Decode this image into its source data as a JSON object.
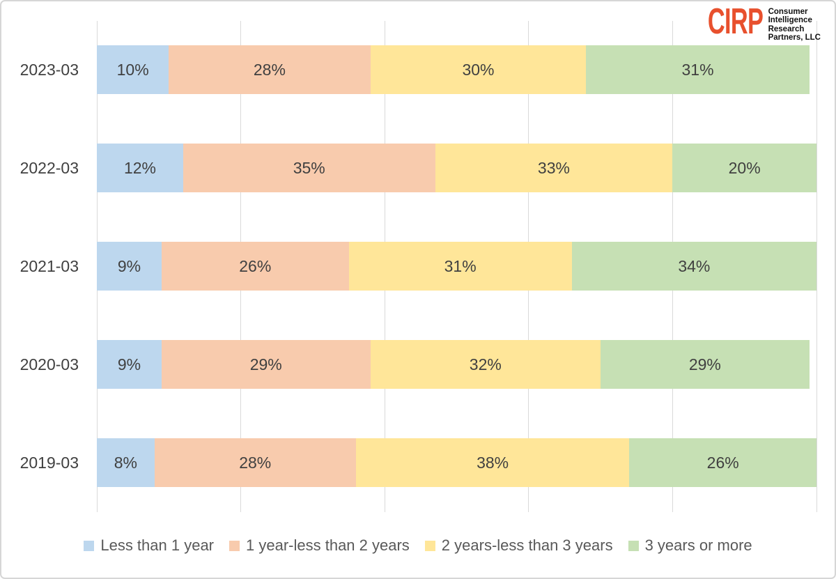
{
  "logo": {
    "brand": "CIRP",
    "brand_color": "#E8502D",
    "org_lines": [
      "Consumer",
      "Intelligence",
      "Research",
      "Partners, LLC"
    ]
  },
  "chart_data": {
    "type": "bar",
    "orientation": "horizontal-stacked",
    "categories": [
      "2023-03",
      "2022-03",
      "2021-03",
      "2020-03",
      "2019-03"
    ],
    "series": [
      {
        "name": "Less than 1 year",
        "color": "#BDD7EE",
        "values": [
          10,
          12,
          9,
          9,
          8
        ]
      },
      {
        "name": "1 year-less than 2 years",
        "color": "#F8CBAD",
        "values": [
          28,
          35,
          26,
          29,
          28
        ]
      },
      {
        "name": "2 years-less than 3 years",
        "color": "#FFE699",
        "values": [
          30,
          33,
          31,
          32,
          38
        ]
      },
      {
        "name": "3 years or more",
        "color": "#C6E0B4",
        "values": [
          31,
          20,
          34,
          29,
          26
        ]
      }
    ],
    "value_suffix": "%",
    "xlim": [
      0,
      100
    ],
    "gridline_interval": 20,
    "grid": true,
    "legend_position": "bottom",
    "label_color": "#404040",
    "gridline_color": "#D9D9D9",
    "title": "",
    "xlabel": "",
    "ylabel": ""
  }
}
